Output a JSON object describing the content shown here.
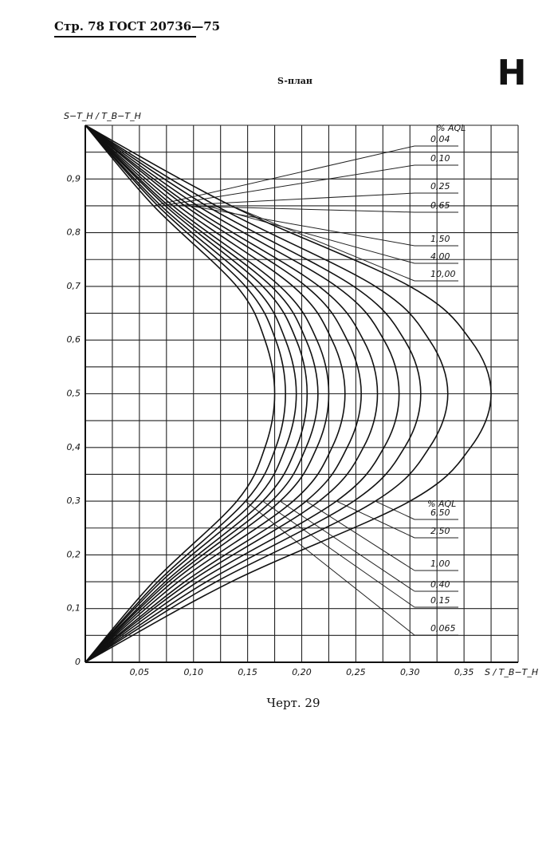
{
  "header": {
    "text": "Стр. 78 ГОСТ 20736—75"
  },
  "corner_letter": "H",
  "caption": "Черт. 29",
  "chart_data": {
    "type": "line",
    "title": "S-план",
    "y_label": "S−T_H / T_B−T_H",
    "x_label": "S / T_B−T_H",
    "legend_header_top": "% AQL",
    "legend_header_bottom": "% AQL",
    "xlim": [
      0,
      0.4
    ],
    "ylim": [
      0,
      1
    ],
    "xticks": [
      {
        "value": 0.05,
        "label": "0,05"
      },
      {
        "value": 0.1,
        "label": "0,10"
      },
      {
        "value": 0.15,
        "label": "0,15"
      },
      {
        "value": 0.2,
        "label": "0,20"
      },
      {
        "value": 0.25,
        "label": "0,25"
      },
      {
        "value": 0.3,
        "label": "0,30"
      },
      {
        "value": 0.35,
        "label": "0,35"
      }
    ],
    "yticks": [
      0,
      {
        "value": 0.1,
        "label": "0,1"
      },
      {
        "value": 0.2,
        "label": "0,2"
      },
      {
        "value": 0.3,
        "label": "0,3"
      },
      {
        "value": 0.4,
        "label": "0,4"
      },
      {
        "value": 0.5,
        "label": "0,5"
      },
      {
        "value": 0.6,
        "label": "0,6"
      },
      {
        "value": 0.7,
        "label": "0,7"
      },
      {
        "value": 0.8,
        "label": "0,8"
      },
      {
        "value": 0.9,
        "label": "0,9"
      }
    ],
    "xgrid": [
      0.025,
      0.05,
      0.075,
      0.1,
      0.125,
      0.15,
      0.175,
      0.2,
      0.225,
      0.25,
      0.275,
      0.3,
      0.325,
      0.35,
      0.375,
      0.4
    ],
    "ygrid": [
      0.05,
      0.1,
      0.15,
      0.2,
      0.25,
      0.3,
      0.35,
      0.4,
      0.45,
      0.5,
      0.55,
      0.6,
      0.65,
      0.7,
      0.75,
      0.8,
      0.85,
      0.9,
      0.95,
      1
    ],
    "grid": true,
    "color": "#111111",
    "y": [
      0,
      0.15,
      0.3,
      0.4,
      0.5,
      0.6,
      0.7,
      0.85,
      1
    ],
    "series": [
      {
        "name": "0,04",
        "values": [
          0,
          0.063,
          0.14,
          0.166,
          0.175,
          0.166,
          0.14,
          0.063,
          0
        ]
      },
      {
        "name": "0,065",
        "values": [
          0,
          0.067,
          0.148,
          0.176,
          0.185,
          0.176,
          0.148,
          0.067,
          0
        ]
      },
      {
        "name": "0,10",
        "values": [
          0,
          0.07,
          0.156,
          0.185,
          0.195,
          0.185,
          0.156,
          0.07,
          0
        ]
      },
      {
        "name": "0,15",
        "values": [
          0,
          0.074,
          0.164,
          0.195,
          0.205,
          0.195,
          0.164,
          0.074,
          0
        ]
      },
      {
        "name": "0,25",
        "values": [
          0,
          0.077,
          0.172,
          0.204,
          0.215,
          0.204,
          0.172,
          0.077,
          0
        ]
      },
      {
        "name": "0,40",
        "values": [
          0,
          0.081,
          0.18,
          0.214,
          0.225,
          0.214,
          0.18,
          0.081,
          0
        ]
      },
      {
        "name": "0,65",
        "values": [
          0,
          0.086,
          0.192,
          0.228,
          0.24,
          0.228,
          0.192,
          0.086,
          0
        ]
      },
      {
        "name": "1,00",
        "values": [
          0,
          0.092,
          0.204,
          0.242,
          0.255,
          0.242,
          0.204,
          0.092,
          0
        ]
      },
      {
        "name": "1,50",
        "values": [
          0,
          0.097,
          0.216,
          0.257,
          0.27,
          0.257,
          0.216,
          0.097,
          0
        ]
      },
      {
        "name": "2,50",
        "values": [
          0,
          0.104,
          0.232,
          0.276,
          0.29,
          0.276,
          0.232,
          0.104,
          0
        ]
      },
      {
        "name": "4,00",
        "values": [
          0,
          0.112,
          0.248,
          0.295,
          0.31,
          0.295,
          0.248,
          0.112,
          0
        ]
      },
      {
        "name": "6,50",
        "values": [
          0,
          0.121,
          0.268,
          0.318,
          0.335,
          0.318,
          0.268,
          0.121,
          0
        ]
      },
      {
        "name": "10,00",
        "values": [
          0,
          0.135,
          0.3,
          0.356,
          0.375,
          0.356,
          0.3,
          0.135,
          0
        ]
      }
    ]
  }
}
